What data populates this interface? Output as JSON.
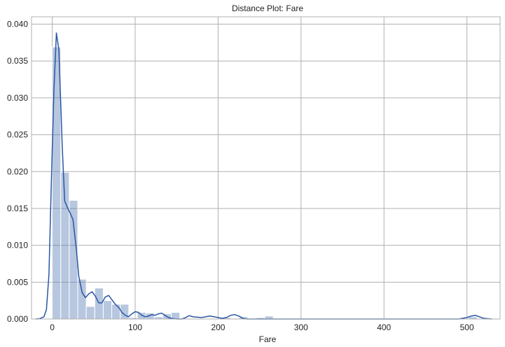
{
  "chart_data": {
    "type": "histogram+kde",
    "title": "Distance Plot: Fare",
    "xlabel": "Fare",
    "ylabel": "",
    "xlim": [
      -25,
      540
    ],
    "ylim": [
      0,
      0.041
    ],
    "grid": true,
    "xticks": [
      0,
      100,
      200,
      300,
      400,
      500
    ],
    "yticks": [
      0.0,
      0.005,
      0.01,
      0.015,
      0.02,
      0.025,
      0.03,
      0.035,
      0.04
    ],
    "ytick_labels": [
      "0.000",
      "0.005",
      "0.010",
      "0.015",
      "0.020",
      "0.025",
      "0.030",
      "0.035",
      "0.040"
    ],
    "xtick_labels": [
      "0",
      "100",
      "200",
      "300",
      "400",
      "500"
    ],
    "bin_width": 10.25,
    "bars": [
      {
        "x0": 0.0,
        "x1": 10.25,
        "density": 0.0369
      },
      {
        "x0": 10.25,
        "x1": 20.5,
        "density": 0.0199
      },
      {
        "x0": 20.5,
        "x1": 30.75,
        "density": 0.0161
      },
      {
        "x0": 30.75,
        "x1": 41.0,
        "density": 0.0054
      },
      {
        "x0": 41.0,
        "x1": 51.25,
        "density": 0.0017
      },
      {
        "x0": 51.25,
        "x1": 61.5,
        "density": 0.0042
      },
      {
        "x0": 61.5,
        "x1": 71.75,
        "density": 0.0025
      },
      {
        "x0": 71.75,
        "x1": 82.0,
        "density": 0.002
      },
      {
        "x0": 82.0,
        "x1": 92.25,
        "density": 0.002
      },
      {
        "x0": 92.25,
        "x1": 102.5,
        "density": 0.0002
      },
      {
        "x0": 102.5,
        "x1": 112.75,
        "density": 0.0009
      },
      {
        "x0": 112.75,
        "x1": 123.0,
        "density": 0.0008
      },
      {
        "x0": 123.0,
        "x1": 133.25,
        "density": 0.0003
      },
      {
        "x0": 133.25,
        "x1": 143.5,
        "density": 0.0007
      },
      {
        "x0": 143.5,
        "x1": 153.75,
        "density": 0.0009
      },
      {
        "x0": 153.75,
        "x1": 164.0,
        "density": 0.0001
      },
      {
        "x0": 205.0,
        "x1": 215.25,
        "density": 0.0002
      },
      {
        "x0": 215.25,
        "x1": 225.5,
        "density": 0.0001
      },
      {
        "x0": 225.5,
        "x1": 235.75,
        "density": 0.0003
      },
      {
        "x0": 246.0,
        "x1": 256.25,
        "density": 0.0002
      },
      {
        "x0": 256.25,
        "x1": 266.5,
        "density": 0.0004
      },
      {
        "x0": 502.0,
        "x1": 512.25,
        "density": 0.0003
      }
    ],
    "kde": {
      "x": [
        -20,
        -15,
        -10,
        -7,
        -4,
        -1,
        2,
        5,
        8,
        10,
        12,
        15,
        18,
        21,
        25,
        29,
        32,
        36,
        40,
        44,
        48,
        52,
        56,
        60,
        64,
        68,
        72,
        76,
        80,
        84,
        88,
        92,
        96,
        100,
        104,
        108,
        112,
        116,
        120,
        124,
        128,
        132,
        136,
        140,
        144,
        148,
        152,
        156,
        160,
        165,
        170,
        180,
        190,
        200,
        205,
        210,
        215,
        220,
        225,
        230,
        235,
        240,
        245,
        250,
        255,
        260,
        265,
        270,
        275,
        280,
        300,
        350,
        400,
        450,
        490,
        500,
        505,
        510,
        515,
        520,
        530
      ],
      "y": [
        0.0,
        5e-05,
        0.0003,
        0.0013,
        0.006,
        0.019,
        0.031,
        0.0388,
        0.0365,
        0.03,
        0.0235,
        0.016,
        0.0152,
        0.0145,
        0.0135,
        0.0095,
        0.0058,
        0.0036,
        0.0029,
        0.0034,
        0.0037,
        0.0031,
        0.0022,
        0.0022,
        0.003,
        0.0032,
        0.0026,
        0.002,
        0.0016,
        0.0009,
        0.0005,
        0.0003,
        0.0007,
        0.001,
        0.0009,
        0.0005,
        0.0003,
        0.0004,
        0.0006,
        0.0005,
        0.0007,
        0.0008,
        0.0005,
        0.0002,
        8e-05,
        2e-05,
        0.0,
        0.0,
        0.00015,
        0.00045,
        0.0003,
        0.0002,
        0.0004,
        0.0002,
        0.0001,
        0.0002,
        0.0005,
        0.0006,
        0.0004,
        0.0001,
        0.0,
        0.0,
        0.0,
        0.0,
        0.0,
        0.0,
        0.0,
        0.0,
        0.0,
        0.0,
        0.0,
        0.0,
        0.0,
        0.0,
        0.0,
        0.0002,
        0.0004,
        0.0005,
        0.0003,
        0.0001,
        0.0
      ]
    },
    "colors": {
      "bar_fill": "#4c72b0",
      "bar_opacity": 0.4,
      "kde_line": "#2b56a4",
      "grid": "#b0b0b0",
      "spine": "#b0b0b0"
    }
  }
}
